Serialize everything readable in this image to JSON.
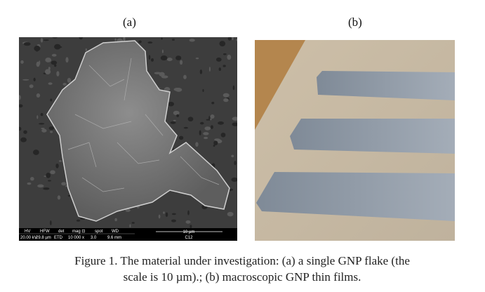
{
  "figure": {
    "panel_a": {
      "label": "(a)",
      "info_bar": {
        "headers": [
          "HV",
          "HFW",
          "det",
          "mag ⊡",
          "spot",
          "WD"
        ],
        "values": [
          "20.00 kV",
          "29.8 µm",
          "ETD",
          "10 000 x",
          "3.0",
          "9.6 mm"
        ],
        "scale": "10 µm",
        "id": "C12"
      }
    },
    "panel_b": {
      "label": "(b)"
    },
    "caption": "Figure 1. The material under investigation: (a) a single GNP flake (the scale is 10 µm).; (b) macroscopic GNP thin films."
  }
}
